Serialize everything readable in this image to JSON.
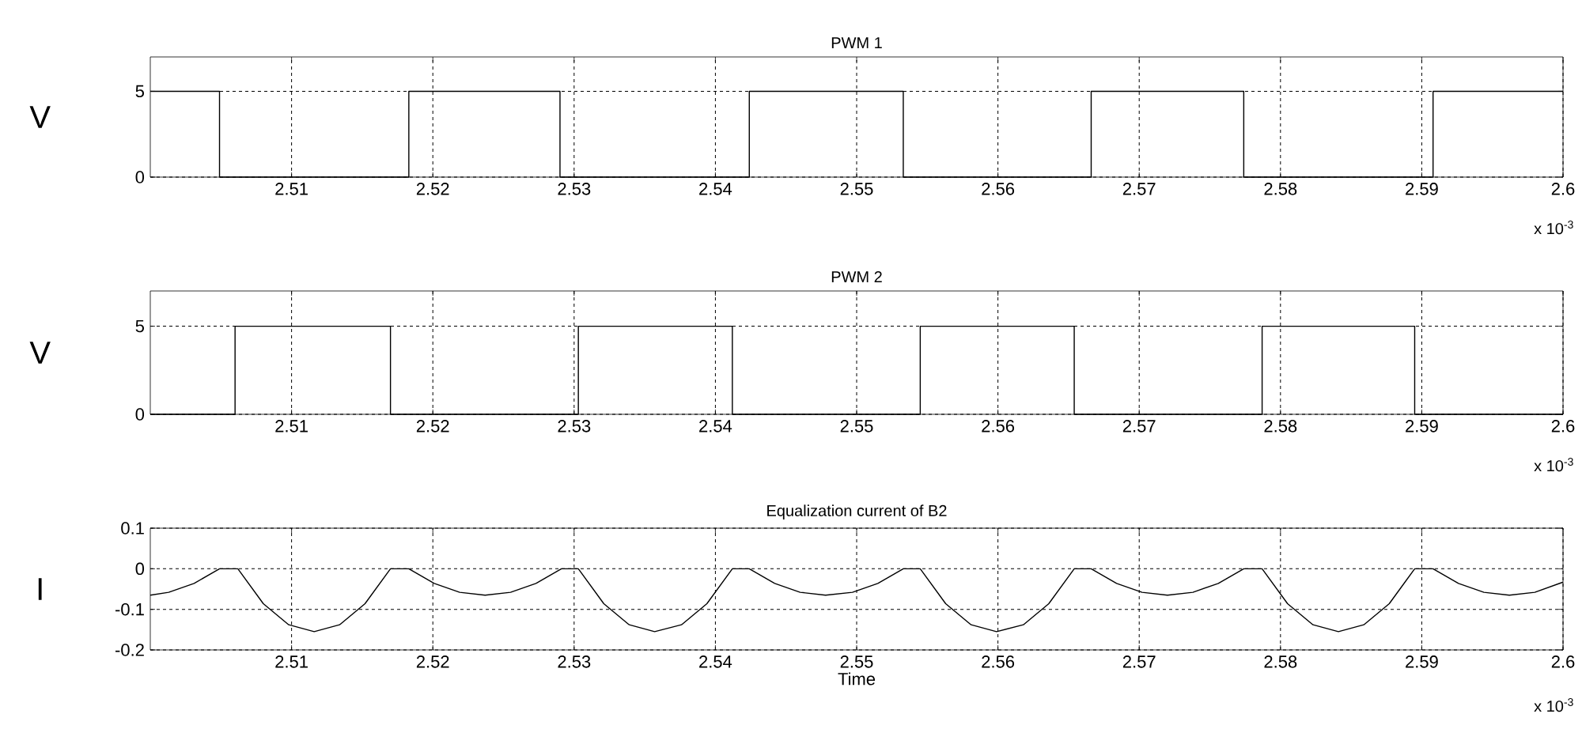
{
  "chart_data": [
    {
      "type": "step",
      "title": "PWM 1",
      "ylabel": "V",
      "color": "#000000",
      "grid": true,
      "x": [
        2.5,
        2.5049,
        2.5183,
        2.529,
        2.5424,
        2.5533,
        2.5666,
        2.5774,
        2.5908,
        2.6
      ],
      "values": [
        5,
        0,
        5,
        0,
        5,
        0,
        5,
        0,
        5,
        5
      ],
      "xlim": [
        2.5,
        2.6
      ],
      "xticks": [
        2.51,
        2.52,
        2.53,
        2.54,
        2.55,
        2.56,
        2.57,
        2.58,
        2.59,
        2.6
      ],
      "ylim": [
        0,
        7
      ],
      "yticks": [
        0,
        5
      ],
      "annotations": [
        "x 10$^{-3}$"
      ]
    },
    {
      "type": "step",
      "title": "PWM 2",
      "ylabel": "V",
      "color": "#000000",
      "grid": true,
      "x": [
        2.5,
        2.506,
        2.517,
        2.5303,
        2.5412,
        2.5545,
        2.5654,
        2.5787,
        2.5895,
        2.6
      ],
      "values": [
        0,
        5,
        0,
        5,
        0,
        5,
        0,
        5,
        0,
        0
      ],
      "xlim": [
        2.5,
        2.6
      ],
      "xticks": [
        2.51,
        2.52,
        2.53,
        2.54,
        2.55,
        2.56,
        2.57,
        2.58,
        2.59,
        2.6
      ],
      "ylim": [
        0,
        7
      ],
      "yticks": [
        0,
        5
      ],
      "annotations": [
        "x 10$^{-3}$"
      ]
    },
    {
      "type": "line",
      "title": "Equalization current of B2",
      "xlabel": "Time",
      "ylabel": "I",
      "color": "#000000",
      "grid": true,
      "x": [
        2.5,
        2.5013,
        2.5031,
        2.5049,
        2.5062,
        2.508,
        2.5098,
        2.5116,
        2.5134,
        2.5152,
        2.517,
        2.5183,
        2.5201,
        2.5219,
        2.5237,
        2.5255,
        2.5273,
        2.5291,
        2.5303,
        2.5321,
        2.5339,
        2.5357,
        2.5376,
        2.5394,
        2.5412,
        2.5424,
        2.5442,
        2.546,
        2.5478,
        2.5497,
        2.5515,
        2.5533,
        2.5545,
        2.5563,
        2.5581,
        2.5599,
        2.5618,
        2.5636,
        2.5654,
        2.5666,
        2.5684,
        2.5702,
        2.572,
        2.5738,
        2.5756,
        2.5774,
        2.5787,
        2.5805,
        2.5823,
        2.5841,
        2.5859,
        2.5877,
        2.5895,
        2.5908,
        2.5926,
        2.5944,
        2.5962,
        2.598,
        2.6
      ],
      "values": [
        -0.065,
        -0.058,
        -0.036,
        0,
        0,
        -0.086,
        -0.138,
        -0.155,
        -0.138,
        -0.086,
        0,
        0,
        -0.036,
        -0.058,
        -0.065,
        -0.058,
        -0.036,
        0,
        0,
        -0.086,
        -0.138,
        -0.155,
        -0.138,
        -0.086,
        0,
        0,
        -0.036,
        -0.058,
        -0.065,
        -0.058,
        -0.036,
        0,
        0,
        -0.086,
        -0.138,
        -0.155,
        -0.138,
        -0.086,
        0,
        0,
        -0.036,
        -0.058,
        -0.065,
        -0.058,
        -0.036,
        0,
        0,
        -0.086,
        -0.138,
        -0.155,
        -0.138,
        -0.086,
        0,
        0,
        -0.036,
        -0.058,
        -0.065,
        -0.058,
        -0.033
      ],
      "xlim": [
        2.5,
        2.6
      ],
      "xticks": [
        2.51,
        2.52,
        2.53,
        2.54,
        2.55,
        2.56,
        2.57,
        2.58,
        2.59,
        2.6
      ],
      "ylim": [
        -0.2,
        0.1
      ],
      "yticks": [
        -0.2,
        -0.1,
        0,
        0.1
      ],
      "annotations": [
        "x 10$^{-3}$"
      ]
    }
  ]
}
